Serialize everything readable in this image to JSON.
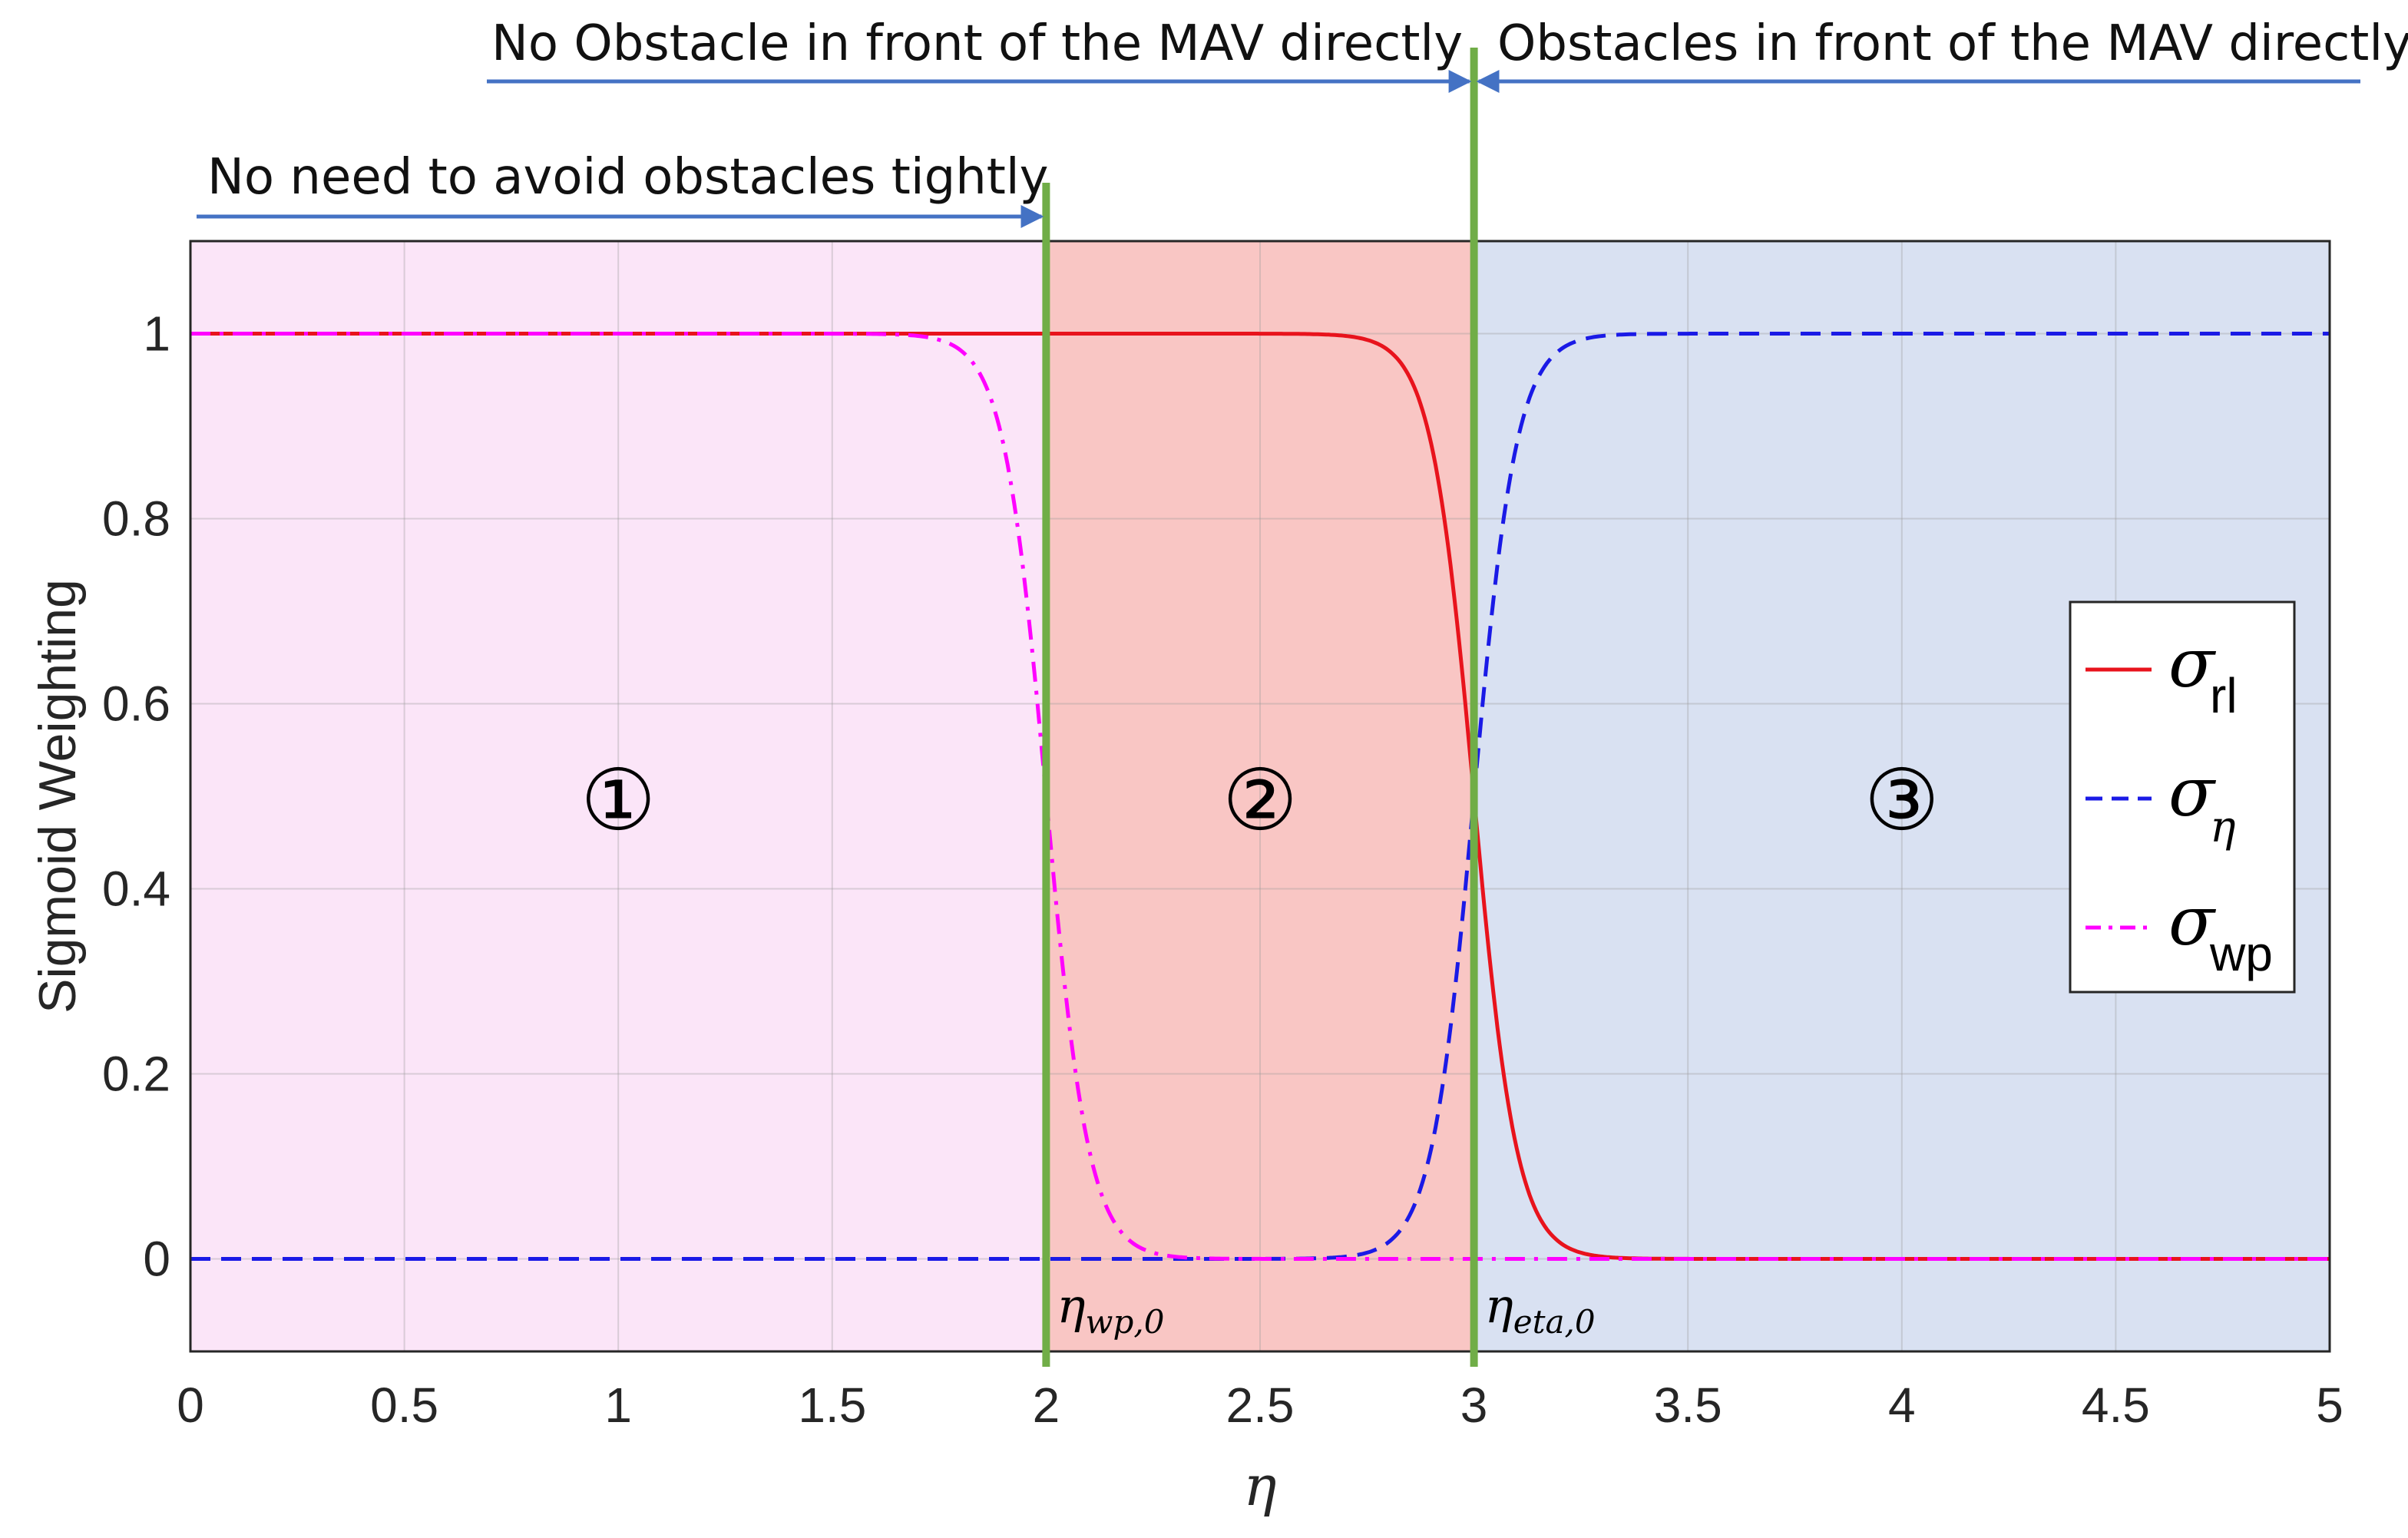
{
  "chart_data": {
    "type": "line",
    "xlabel": "η",
    "ylabel": "Sigmoid Weighting",
    "xlim": [
      0,
      5
    ],
    "ylim": [
      -0.1,
      1.1
    ],
    "x_ticks": [
      0,
      0.5,
      1,
      1.5,
      2,
      2.5,
      3,
      3.5,
      4,
      4.5,
      5
    ],
    "x_tick_labels": [
      "0",
      "0.5",
      "1",
      "1.5",
      "2",
      "2.5",
      "3",
      "3.5",
      "4",
      "4.5",
      "5"
    ],
    "y_ticks": [
      0,
      0.2,
      0.4,
      0.6,
      0.8,
      1
    ],
    "y_tick_labels": [
      "0",
      "0.2",
      "0.4",
      "0.6",
      "0.8",
      "1"
    ],
    "grid": true,
    "legend_position": "right",
    "x": [
      0,
      0.5,
      1,
      1.5,
      1.7,
      1.8,
      1.9,
      1.95,
      2,
      2.05,
      2.1,
      2.2,
      2.3,
      2.5,
      2.7,
      2.8,
      2.9,
      2.95,
      3,
      3.05,
      3.1,
      3.2,
      3.3,
      3.5,
      4,
      4.5,
      5
    ],
    "series": [
      {
        "name": "σ rl",
        "symbol": "σ",
        "subscript": "rl",
        "color": "#e8131c",
        "style": "solid",
        "values": [
          1,
          1,
          1,
          1,
          1,
          1,
          1,
          1,
          1,
          1,
          1,
          1,
          1,
          1,
          0.998,
          0.982,
          0.881,
          0.731,
          0.5,
          0.269,
          0.119,
          0.018,
          0.002,
          0,
          0,
          0,
          0
        ]
      },
      {
        "name": "σ η",
        "symbol": "σ",
        "subscript": "η",
        "color": "#1a1ae6",
        "style": "dashed",
        "values": [
          0,
          0,
          0,
          0,
          0,
          0,
          0,
          0,
          0,
          0,
          0,
          0,
          0,
          0,
          0.002,
          0.018,
          0.119,
          0.269,
          0.5,
          0.731,
          0.881,
          0.982,
          0.998,
          1,
          1,
          1,
          1
        ]
      },
      {
        "name": "σ wp",
        "symbol": "σ",
        "subscript": "wp",
        "color": "#ff00ff",
        "style": "dashdot",
        "values": [
          1,
          1,
          1,
          1,
          0.998,
          0.982,
          0.881,
          0.731,
          0.5,
          0.269,
          0.119,
          0.018,
          0.002,
          0,
          0,
          0,
          0,
          0,
          0,
          0,
          0,
          0,
          0,
          0,
          0,
          0,
          0
        ]
      }
    ],
    "regions": [
      {
        "label": "①",
        "x_range": [
          0,
          2
        ],
        "color": "#fbe5f8"
      },
      {
        "label": "②",
        "x_range": [
          2,
          3
        ],
        "color": "#f9c6c4"
      },
      {
        "label": "③",
        "x_range": [
          3,
          5
        ],
        "color": "#d9e1f2"
      }
    ],
    "vlines": [
      {
        "x": 2,
        "label": "η",
        "sublabel": "wp,0",
        "color": "#70ad47"
      },
      {
        "x": 3,
        "label": "η",
        "sublabel": "eta,0",
        "color": "#70ad47"
      }
    ],
    "annotations": [
      {
        "text": "No need to avoid obstacles tightly",
        "x_range": [
          0,
          2
        ]
      },
      {
        "text": "No Obstacle in front of the MAV directly",
        "x_range": [
          0.7,
          3
        ]
      },
      {
        "text": "Obstacles in front of the MAV directly",
        "x_range": [
          3,
          5
        ]
      }
    ],
    "arrow_color": "#4472c4"
  }
}
